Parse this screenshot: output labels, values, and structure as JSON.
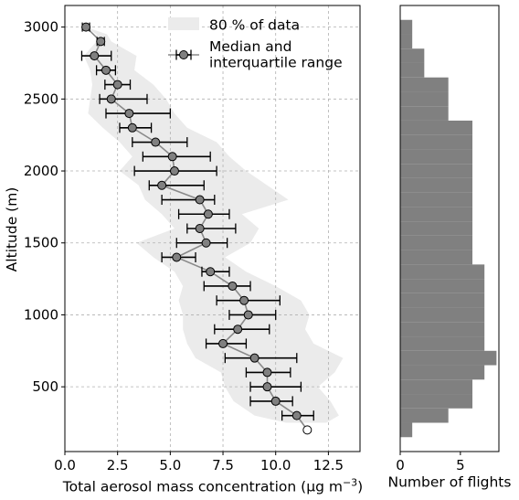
{
  "chart_data": [
    {
      "type": "scatter",
      "xlabel": "Total aerosol mass concentration (µg m",
      "xlabel_sup": "−3",
      "xlabel_end": ")",
      "ylabel": "Altitude (m)",
      "xlim": [
        0,
        14
      ],
      "ylim": [
        50,
        3150
      ],
      "xticks": [
        0,
        2.5,
        5,
        7.5,
        10,
        12.5
      ],
      "xtick_labels": [
        "0.0",
        "2.5",
        "5.0",
        "7.5",
        "10.0",
        "12.5"
      ],
      "yticks": [
        500,
        1000,
        1500,
        2000,
        2500,
        3000
      ],
      "ytick_labels": [
        "500",
        "1000",
        "1500",
        "2000",
        "2500",
        "3000"
      ],
      "grid": true,
      "legend_position": "top-right",
      "legend": [
        {
          "label": "80 % of data",
          "kind": "band"
        },
        {
          "label_lines": [
            "Median and",
            "interquartile range"
          ],
          "kind": "errorbar"
        }
      ],
      "series": [
        {
          "kind": "median_iqr",
          "points": [
            {
              "y": 3000,
              "x": 1.0,
              "lo": 1.0,
              "hi": 1.0
            },
            {
              "y": 2900,
              "x": 1.7,
              "lo": 1.7,
              "hi": 1.7
            },
            {
              "y": 2800,
              "x": 1.4,
              "lo": 0.8,
              "hi": 2.2
            },
            {
              "y": 2700,
              "x": 1.95,
              "lo": 1.5,
              "hi": 2.4
            },
            {
              "y": 2600,
              "x": 2.5,
              "lo": 1.9,
              "hi": 3.1
            },
            {
              "y": 2500,
              "x": 2.2,
              "lo": 1.65,
              "hi": 3.9
            },
            {
              "y": 2400,
              "x": 3.05,
              "lo": 1.95,
              "hi": 5.0
            },
            {
              "y": 2300,
              "x": 3.2,
              "lo": 2.6,
              "hi": 4.1
            },
            {
              "y": 2200,
              "x": 4.3,
              "lo": 3.2,
              "hi": 5.8
            },
            {
              "y": 2100,
              "x": 5.1,
              "lo": 3.7,
              "hi": 6.9
            },
            {
              "y": 2000,
              "x": 5.2,
              "lo": 3.3,
              "hi": 7.2
            },
            {
              "y": 1900,
              "x": 4.6,
              "lo": 4.0,
              "hi": 6.6
            },
            {
              "y": 1800,
              "x": 6.4,
              "lo": 4.6,
              "hi": 7.1
            },
            {
              "y": 1700,
              "x": 6.8,
              "lo": 5.4,
              "hi": 7.8
            },
            {
              "y": 1600,
              "x": 6.4,
              "lo": 5.8,
              "hi": 8.1
            },
            {
              "y": 1500,
              "x": 6.7,
              "lo": 5.3,
              "hi": 7.7
            },
            {
              "y": 1400,
              "x": 5.3,
              "lo": 4.6,
              "hi": 6.2
            },
            {
              "y": 1300,
              "x": 6.9,
              "lo": 6.5,
              "hi": 7.8
            },
            {
              "y": 1200,
              "x": 7.95,
              "lo": 6.6,
              "hi": 8.8
            },
            {
              "y": 1100,
              "x": 8.5,
              "lo": 7.2,
              "hi": 10.2
            },
            {
              "y": 1000,
              "x": 8.7,
              "lo": 7.8,
              "hi": 10.0
            },
            {
              "y": 900,
              "x": 8.2,
              "lo": 7.1,
              "hi": 9.7
            },
            {
              "y": 800,
              "x": 7.5,
              "lo": 6.7,
              "hi": 8.6
            },
            {
              "y": 700,
              "x": 9.0,
              "lo": 7.6,
              "hi": 11.0
            },
            {
              "y": 600,
              "x": 9.6,
              "lo": 8.6,
              "hi": 10.7
            },
            {
              "y": 500,
              "x": 9.6,
              "lo": 8.8,
              "hi": 11.2
            },
            {
              "y": 400,
              "x": 10.0,
              "lo": 8.8,
              "hi": 10.8
            },
            {
              "y": 300,
              "x": 11.0,
              "lo": 10.3,
              "hi": 11.8
            },
            {
              "y": 200,
              "x": 11.5,
              "lo": 11.5,
              "hi": 11.5,
              "hollow": true
            }
          ]
        },
        {
          "kind": "band_80",
          "bounds": [
            {
              "y": 3000,
              "lo": 1.0,
              "hi": 1.0
            },
            {
              "y": 2950,
              "lo": 1.5,
              "hi": 2.0
            },
            {
              "y": 2900,
              "lo": 1.5,
              "hi": 2.2
            },
            {
              "y": 2800,
              "lo": 0.9,
              "hi": 3.4
            },
            {
              "y": 2700,
              "lo": 1.2,
              "hi": 3.3
            },
            {
              "y": 2600,
              "lo": 1.3,
              "hi": 4.2
            },
            {
              "y": 2500,
              "lo": 1.2,
              "hi": 4.8
            },
            {
              "y": 2400,
              "lo": 1.1,
              "hi": 5.2
            },
            {
              "y": 2300,
              "lo": 1.8,
              "hi": 5.8
            },
            {
              "y": 2200,
              "lo": 2.6,
              "hi": 7.2
            },
            {
              "y": 2100,
              "lo": 3.2,
              "hi": 7.8
            },
            {
              "y": 2000,
              "lo": 2.6,
              "hi": 8.6
            },
            {
              "y": 1900,
              "lo": 3.5,
              "hi": 9.6
            },
            {
              "y": 1800,
              "lo": 3.8,
              "hi": 10.6
            },
            {
              "y": 1700,
              "lo": 4.6,
              "hi": 8.4
            },
            {
              "y": 1600,
              "lo": 5.2,
              "hi": 9.2
            },
            {
              "y": 1500,
              "lo": 3.4,
              "hi": 8.8
            },
            {
              "y": 1400,
              "lo": 4.2,
              "hi": 7.6
            },
            {
              "y": 1300,
              "lo": 5.2,
              "hi": 8.6
            },
            {
              "y": 1200,
              "lo": 5.6,
              "hi": 10.0
            },
            {
              "y": 1100,
              "lo": 5.4,
              "hi": 11.2
            },
            {
              "y": 1000,
              "lo": 5.6,
              "hi": 11.6
            },
            {
              "y": 900,
              "lo": 5.6,
              "hi": 11.4
            },
            {
              "y": 800,
              "lo": 5.8,
              "hi": 11.8
            },
            {
              "y": 700,
              "lo": 6.2,
              "hi": 13.2
            },
            {
              "y": 600,
              "lo": 7.4,
              "hi": 12.8
            },
            {
              "y": 500,
              "lo": 7.6,
              "hi": 12.0
            },
            {
              "y": 400,
              "lo": 8.0,
              "hi": 12.6
            },
            {
              "y": 300,
              "lo": 9.0,
              "hi": 13.0
            },
            {
              "y": 250,
              "lo": 10.5,
              "hi": 12.4
            }
          ]
        }
      ]
    },
    {
      "type": "bar",
      "orientation": "horizontal",
      "xlabel": "Number of flights",
      "xlim": [
        0,
        8.2
      ],
      "xticks": [
        0,
        5
      ],
      "xtick_labels": [
        "0",
        "5"
      ],
      "ylim": [
        50,
        3150
      ],
      "bin_width": 100,
      "bins": [
        {
          "y0": 150,
          "value": 1
        },
        {
          "y0": 250,
          "value": 4
        },
        {
          "y0": 350,
          "value": 6
        },
        {
          "y0": 450,
          "value": 6
        },
        {
          "y0": 550,
          "value": 7
        },
        {
          "y0": 650,
          "value": 8
        },
        {
          "y0": 750,
          "value": 7
        },
        {
          "y0": 850,
          "value": 7
        },
        {
          "y0": 950,
          "value": 7
        },
        {
          "y0": 1050,
          "value": 7
        },
        {
          "y0": 1150,
          "value": 7
        },
        {
          "y0": 1250,
          "value": 7
        },
        {
          "y0": 1350,
          "value": 6
        },
        {
          "y0": 1450,
          "value": 6
        },
        {
          "y0": 1550,
          "value": 6
        },
        {
          "y0": 1650,
          "value": 6
        },
        {
          "y0": 1750,
          "value": 6
        },
        {
          "y0": 1850,
          "value": 6
        },
        {
          "y0": 1950,
          "value": 6
        },
        {
          "y0": 2050,
          "value": 6
        },
        {
          "y0": 2150,
          "value": 6
        },
        {
          "y0": 2250,
          "value": 6
        },
        {
          "y0": 2350,
          "value": 4
        },
        {
          "y0": 2450,
          "value": 4
        },
        {
          "y0": 2550,
          "value": 4
        },
        {
          "y0": 2650,
          "value": 2
        },
        {
          "y0": 2750,
          "value": 2
        },
        {
          "y0": 2850,
          "value": 1
        },
        {
          "y0": 2950,
          "value": 1
        }
      ],
      "color": "#808080"
    }
  ],
  "colors": {
    "band": "#ebebeb",
    "marker_fill": "#808080",
    "median_line": "#8a8a8a",
    "errorbar": "#000000",
    "hist_bar": "#808080",
    "grid": "#b0b0b0"
  }
}
